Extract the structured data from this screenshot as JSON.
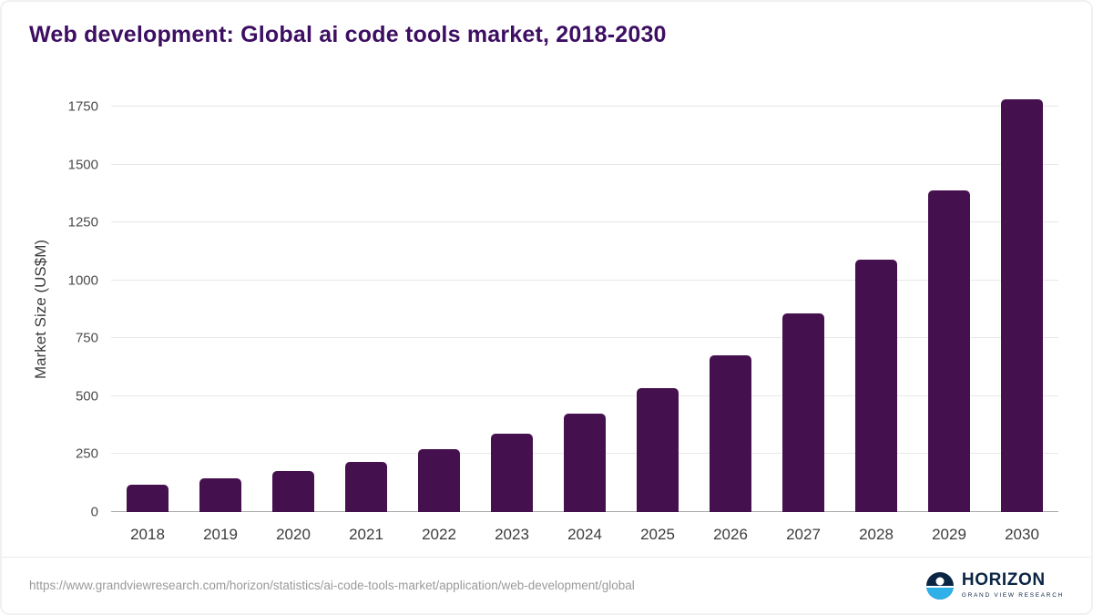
{
  "accent_color": "#45104E",
  "title_color": "#3d0e62",
  "chart_data": {
    "type": "bar",
    "title": "Web development: Global ai code tools market, 2018-2030",
    "categories": [
      "2018",
      "2019",
      "2020",
      "2021",
      "2022",
      "2023",
      "2024",
      "2025",
      "2026",
      "2027",
      "2028",
      "2029",
      "2030"
    ],
    "values": [
      120,
      146,
      178,
      218,
      272,
      340,
      425,
      535,
      678,
      858,
      1090,
      1390,
      1780
    ],
    "xlabel": "",
    "ylabel": "Market Size (US$M)",
    "ylim": [
      0,
      1750
    ],
    "yticks": [
      0,
      250,
      500,
      750,
      1000,
      1250,
      1500,
      1750
    ],
    "grid": "horizontal",
    "legend": "none",
    "bar_color": "#45104E"
  },
  "footer": {
    "source_url": "https://www.grandviewresearch.com/horizon/statistics/ai-code-tools-market/application/web-development/global",
    "brand": "HORIZON",
    "brand_sub": "GRAND VIEW RESEARCH"
  }
}
